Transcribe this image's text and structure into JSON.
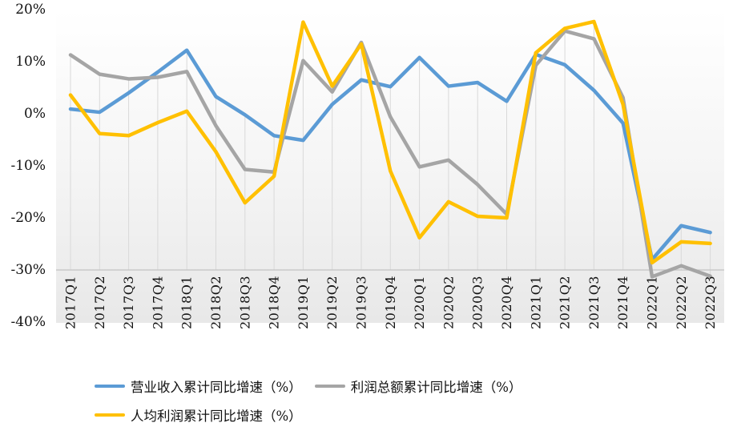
{
  "chart_data": {
    "type": "line",
    "categories": [
      "2017Q1",
      "2017Q2",
      "2017Q3",
      "2017Q4",
      "2018Q1",
      "2018Q2",
      "2018Q3",
      "2018Q4",
      "2019Q1",
      "2019Q2",
      "2019Q3",
      "2019Q4",
      "2020Q1",
      "2020Q2",
      "2020Q3",
      "2020Q4",
      "2021Q1",
      "2021Q2",
      "2021Q3",
      "2021Q4",
      "2022Q1",
      "2022Q2",
      "2022Q3"
    ],
    "series": [
      {
        "name": "营业收入累计同比增速（%）",
        "color": "#5B9BD5",
        "values": [
          0.9,
          0.3,
          4.0,
          8.0,
          12.2,
          3.3,
          -0.2,
          -4.2,
          -5.1,
          1.8,
          6.5,
          5.2,
          10.8,
          5.3,
          6.0,
          2.4,
          11.4,
          9.4,
          4.5,
          -1.8,
          -28.0,
          -21.5,
          -22.8
        ]
      },
      {
        "name": "利润总额累计同比增速（%）",
        "color": "#A5A5A5",
        "values": [
          11.3,
          7.6,
          6.7,
          7.0,
          8.1,
          -2.3,
          -10.7,
          -11.2,
          10.2,
          4.2,
          13.7,
          -0.6,
          -10.2,
          -8.9,
          -13.6,
          -19.3,
          9.3,
          15.9,
          14.4,
          3.1,
          -31.3,
          -29.2,
          -31.2
        ]
      },
      {
        "name": "人均利润累计同比增速（%）",
        "color": "#FFC000",
        "values": [
          3.6,
          -3.8,
          -4.2,
          -1.7,
          0.5,
          -7.3,
          -17.1,
          -12.0,
          17.6,
          5.3,
          13.4,
          -11.0,
          -23.8,
          -16.9,
          -19.7,
          -20.0,
          11.7,
          16.4,
          17.7,
          1.8,
          -28.6,
          -24.6,
          -24.9
        ]
      }
    ],
    "title": "",
    "xlabel": "",
    "ylabel": "",
    "y_axis": {
      "min": -40,
      "max": 20,
      "ticks": [
        20,
        10,
        0,
        -10,
        -20,
        -30,
        -40
      ],
      "tick_labels": [
        "20%",
        "10%",
        "0%",
        "-10%",
        "-20%",
        "-30%",
        "-40%"
      ]
    },
    "x_axis_crosses_at": -30,
    "grid": "vertical drop lines per category, no horizontal gridlines",
    "legend_position": "bottom"
  },
  "colors": {
    "revenue_line": "#5B9BD5",
    "profit_line": "#A5A5A5",
    "per_capita_profit_line": "#FFC000",
    "drop_line": "#D9D9D9",
    "axis_line": "#C3C3C3",
    "plot_gradient_top": "#FFFFFF",
    "plot_gradient_bottom": "#E8E8E8"
  }
}
